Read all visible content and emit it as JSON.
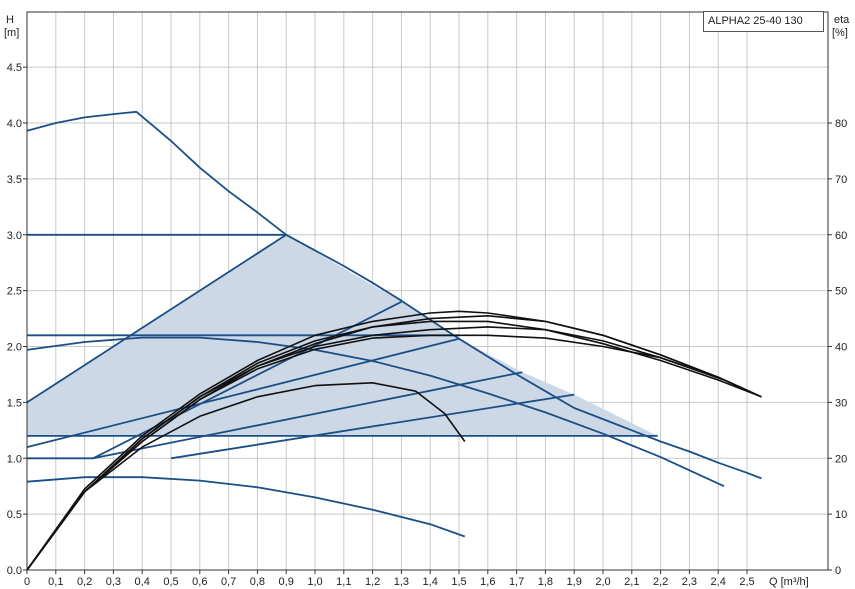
{
  "chart_data": {
    "type": "line",
    "title": "ALPHA2 25-40 130",
    "ylabel": "H",
    "yunit": "[m]",
    "y2label": "eta",
    "y2unit": "[%]",
    "xlabel": "Q [m³/h]",
    "xlim": [
      0,
      2.8
    ],
    "ylim": [
      0,
      5.0
    ],
    "y2lim": [
      0,
      100
    ],
    "grid": true,
    "x_ticks": [
      "0",
      "0,1",
      "0,2",
      "0,3",
      "0,4",
      "0,5",
      "0,6",
      "0,7",
      "0,8",
      "0,9",
      "1,0",
      "1,1",
      "1,2",
      "1,3",
      "1,4",
      "1,5",
      "1,6",
      "1,7",
      "1,8",
      "1,9",
      "2,0",
      "2,1",
      "2,2",
      "2,3",
      "2,4",
      "2,5"
    ],
    "y_ticks": [
      "0.0",
      "0.5",
      "1.0",
      "1.5",
      "2.0",
      "2.5",
      "3.0",
      "3.5",
      "4.0",
      "4.5"
    ],
    "y2_ticks": [
      "0",
      "10",
      "20",
      "30",
      "40",
      "50",
      "60",
      "70",
      "80"
    ],
    "colors": {
      "curve": "#1a4f86",
      "band": "#cdd8e6",
      "eta": "#111111",
      "grid": "#c8c8c8",
      "frame": "#333333"
    },
    "operating_range": [
      [
        0.0,
        1.0
      ],
      [
        0.0,
        1.5
      ],
      [
        0.9,
        3.0
      ],
      [
        1.3,
        2.4
      ],
      [
        1.5,
        2.07
      ],
      [
        1.72,
        1.77
      ],
      [
        1.9,
        1.57
      ],
      [
        2.19,
        1.2
      ],
      [
        0.0,
        1.2
      ],
      [
        0.0,
        1.0
      ]
    ],
    "series": [
      {
        "kind": "head",
        "points": [
          [
            0.0,
            3.93
          ],
          [
            0.1,
            4.0
          ],
          [
            0.2,
            4.05
          ],
          [
            0.3,
            4.08
          ],
          [
            0.38,
            4.1
          ],
          [
            0.5,
            3.84
          ],
          [
            0.6,
            3.6
          ],
          [
            0.7,
            3.39
          ],
          [
            0.8,
            3.2
          ],
          [
            0.9,
            3.0
          ],
          [
            1.0,
            2.86
          ],
          [
            1.1,
            2.72
          ],
          [
            1.2,
            2.57
          ],
          [
            1.3,
            2.41
          ],
          [
            1.4,
            2.24
          ],
          [
            1.5,
            2.07
          ],
          [
            1.6,
            1.91
          ],
          [
            1.7,
            1.75
          ],
          [
            1.8,
            1.6
          ],
          [
            1.9,
            1.45
          ],
          [
            2.0,
            1.35
          ],
          [
            2.1,
            1.25
          ],
          [
            2.2,
            1.15
          ],
          [
            2.3,
            1.06
          ],
          [
            2.4,
            0.96
          ],
          [
            2.5,
            0.87
          ],
          [
            2.55,
            0.82
          ]
        ]
      },
      {
        "kind": "head",
        "points": [
          [
            0.0,
            3.0
          ],
          [
            0.9,
            3.0
          ]
        ]
      },
      {
        "kind": "head",
        "points": [
          [
            0.0,
            2.1
          ],
          [
            1.5,
            2.1
          ]
        ]
      },
      {
        "kind": "head",
        "points": [
          [
            0.0,
            1.2
          ],
          [
            2.19,
            1.2
          ]
        ]
      },
      {
        "kind": "head",
        "points": [
          [
            0.0,
            1.0
          ],
          [
            0.23,
            1.0
          ],
          [
            1.3,
            2.4
          ]
        ]
      },
      {
        "kind": "head",
        "points": [
          [
            0.0,
            1.5
          ],
          [
            0.9,
            3.0
          ]
        ]
      },
      {
        "kind": "head",
        "points": [
          [
            0.0,
            1.1
          ],
          [
            1.5,
            2.07
          ]
        ]
      },
      {
        "kind": "head",
        "points": [
          [
            0.23,
            1.0
          ],
          [
            1.72,
            1.77
          ]
        ]
      },
      {
        "kind": "head",
        "points": [
          [
            0.5,
            1.0
          ],
          [
            1.9,
            1.57
          ]
        ]
      },
      {
        "kind": "head",
        "points": [
          [
            0.0,
            1.97
          ],
          [
            0.2,
            2.04
          ],
          [
            0.4,
            2.08
          ],
          [
            0.6,
            2.08
          ],
          [
            0.8,
            2.04
          ],
          [
            1.0,
            1.97
          ],
          [
            1.2,
            1.87
          ],
          [
            1.4,
            1.74
          ],
          [
            1.6,
            1.58
          ],
          [
            1.8,
            1.41
          ],
          [
            2.0,
            1.22
          ],
          [
            2.2,
            1.01
          ],
          [
            2.42,
            0.75
          ]
        ]
      },
      {
        "kind": "head",
        "points": [
          [
            0.0,
            0.79
          ],
          [
            0.2,
            0.83
          ],
          [
            0.4,
            0.83
          ],
          [
            0.6,
            0.8
          ],
          [
            0.8,
            0.74
          ],
          [
            1.0,
            0.65
          ],
          [
            1.2,
            0.54
          ],
          [
            1.4,
            0.41
          ],
          [
            1.52,
            0.3
          ]
        ]
      },
      {
        "kind": "eta",
        "points": [
          [
            0.0,
            0
          ],
          [
            0.2,
            14
          ],
          [
            0.4,
            22
          ],
          [
            0.6,
            27.5
          ],
          [
            0.8,
            31
          ],
          [
            1.0,
            33
          ],
          [
            1.2,
            33.5
          ],
          [
            1.35,
            32
          ],
          [
            1.45,
            28
          ],
          [
            1.52,
            23
          ]
        ]
      },
      {
        "kind": "eta",
        "points": [
          [
            0.0,
            0
          ],
          [
            0.2,
            14
          ],
          [
            0.4,
            23
          ],
          [
            0.6,
            30.5
          ],
          [
            0.8,
            36
          ],
          [
            1.0,
            39.5
          ],
          [
            1.2,
            41.5
          ],
          [
            1.4,
            42
          ],
          [
            1.6,
            42
          ],
          [
            1.8,
            41.5
          ],
          [
            2.0,
            40
          ],
          [
            2.2,
            38
          ],
          [
            2.42,
            34
          ]
        ]
      },
      {
        "kind": "eta",
        "points": [
          [
            0.0,
            0
          ],
          [
            0.2,
            14
          ],
          [
            0.4,
            23
          ],
          [
            0.6,
            30.5
          ],
          [
            0.8,
            36.5
          ],
          [
            1.0,
            40.5
          ],
          [
            1.2,
            43.5
          ],
          [
            1.4,
            45
          ],
          [
            1.6,
            45.5
          ],
          [
            1.8,
            44.5
          ],
          [
            2.0,
            42
          ],
          [
            2.2,
            38.5
          ],
          [
            2.4,
            34.5
          ],
          [
            2.55,
            31
          ]
        ]
      },
      {
        "kind": "eta",
        "points": [
          [
            0.0,
            0
          ],
          [
            0.2,
            14.5
          ],
          [
            0.4,
            24
          ],
          [
            0.6,
            31.5
          ],
          [
            0.8,
            37.5
          ],
          [
            1.0,
            42
          ],
          [
            1.2,
            44.5
          ],
          [
            1.4,
            46
          ],
          [
            1.5,
            46.3
          ],
          [
            1.6,
            46
          ],
          [
            1.8,
            44.5
          ],
          [
            2.0,
            42
          ],
          [
            2.2,
            38.5
          ],
          [
            2.4,
            34.5
          ],
          [
            2.55,
            31
          ]
        ]
      },
      {
        "kind": "eta",
        "points": [
          [
            0.0,
            0
          ],
          [
            0.2,
            14
          ],
          [
            0.4,
            23.5
          ],
          [
            0.6,
            31
          ],
          [
            0.8,
            37
          ],
          [
            1.0,
            41
          ],
          [
            1.2,
            43.5
          ],
          [
            1.4,
            44.5
          ],
          [
            1.6,
            44.5
          ],
          [
            1.8,
            43
          ],
          [
            2.0,
            40.5
          ],
          [
            2.2,
            37.5
          ],
          [
            2.4,
            34
          ],
          [
            2.55,
            31
          ]
        ]
      },
      {
        "kind": "eta",
        "points": [
          [
            0.0,
            0
          ],
          [
            0.2,
            14
          ],
          [
            0.4,
            23.5
          ],
          [
            0.6,
            31
          ],
          [
            0.8,
            36.5
          ],
          [
            1.0,
            40
          ],
          [
            1.2,
            42
          ],
          [
            1.4,
            43
          ],
          [
            1.6,
            43.5
          ],
          [
            1.8,
            43
          ],
          [
            2.0,
            41
          ],
          [
            2.2,
            38
          ],
          [
            2.4,
            34.5
          ],
          [
            2.55,
            31
          ]
        ]
      }
    ]
  }
}
